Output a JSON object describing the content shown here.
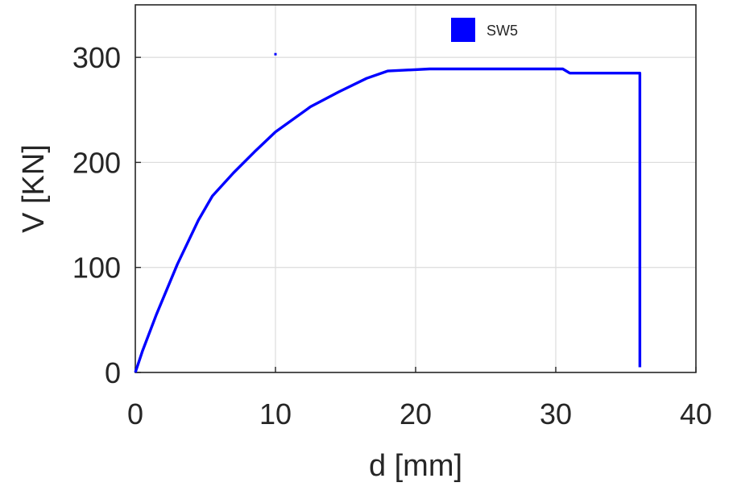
{
  "chart_data": {
    "type": "line",
    "title": "",
    "xlabel": "d [mm]",
    "ylabel": "V [KN]",
    "xlim": [
      0,
      40
    ],
    "ylim": [
      0,
      350
    ],
    "xticks": [
      0,
      10,
      20,
      30,
      40
    ],
    "yticks": [
      0,
      100,
      200,
      300
    ],
    "grid": true,
    "legend": {
      "placement": "top-center"
    },
    "series": [
      {
        "name": "SW5",
        "color": "#0000ff",
        "points": [
          [
            0.0,
            0
          ],
          [
            0.5,
            20
          ],
          [
            1.5,
            55
          ],
          [
            3.0,
            103
          ],
          [
            4.5,
            145
          ],
          [
            5.5,
            168
          ],
          [
            7.0,
            190
          ],
          [
            8.5,
            210
          ],
          [
            10.0,
            229
          ],
          [
            12.5,
            253
          ],
          [
            14.5,
            267
          ],
          [
            16.5,
            280
          ],
          [
            18.0,
            287
          ],
          [
            21.0,
            289
          ],
          [
            25.0,
            289
          ],
          [
            30.0,
            289
          ],
          [
            30.5,
            289
          ],
          [
            31.0,
            285
          ],
          [
            33.0,
            285
          ],
          [
            35.5,
            285
          ],
          [
            36.0,
            285
          ],
          [
            36.0,
            5
          ]
        ]
      }
    ],
    "marker": {
      "x": 10.0,
      "y": 303
    }
  }
}
